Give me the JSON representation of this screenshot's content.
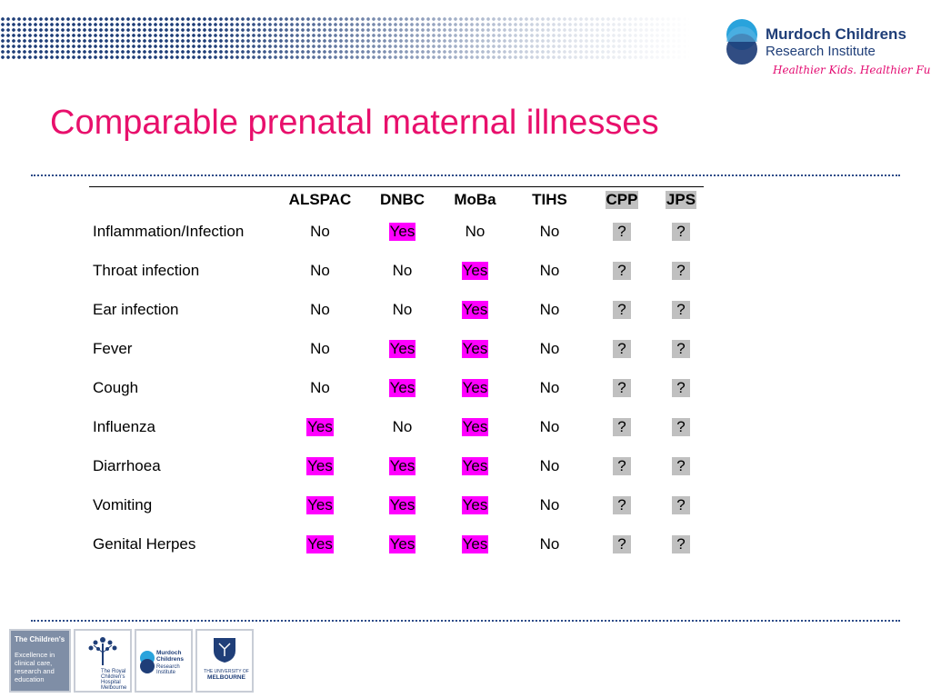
{
  "header": {
    "logo_name_line1": "Murdoch Childrens",
    "logo_name_line2": "Research Institute",
    "logo_tagline": "Healthier Kids. Healthier Future."
  },
  "title": "Comparable prenatal maternal illnesses",
  "table": {
    "columns": [
      "ALSPAC",
      "DNBC",
      "MoBa",
      "TIHS",
      "CPP",
      "JPS"
    ],
    "rows": [
      {
        "label": "Inflammation/Infection",
        "values": [
          "No",
          "Yes",
          "No",
          "No",
          "?",
          "?"
        ]
      },
      {
        "label": "Throat infection",
        "values": [
          "No",
          "No",
          "Yes",
          "No",
          "?",
          "?"
        ]
      },
      {
        "label": "Ear infection",
        "values": [
          "No",
          "No",
          "Yes",
          "No",
          "?",
          "?"
        ]
      },
      {
        "label": "Fever",
        "values": [
          "No",
          "Yes",
          "Yes",
          "No",
          "?",
          "?"
        ]
      },
      {
        "label": "Cough",
        "values": [
          "No",
          "Yes",
          "Yes",
          "No",
          "?",
          "?"
        ]
      },
      {
        "label": "Influenza",
        "values": [
          "Yes",
          "No",
          "Yes",
          "No",
          "?",
          "?"
        ]
      },
      {
        "label": "Diarrhoea",
        "values": [
          "Yes",
          "Yes",
          "Yes",
          "No",
          "?",
          "?"
        ]
      },
      {
        "label": "Vomiting",
        "values": [
          "Yes",
          "Yes",
          "Yes",
          "No",
          "?",
          "?"
        ]
      },
      {
        "label": "Genital Herpes",
        "values": [
          "Yes",
          "Yes",
          "Yes",
          "No",
          "?",
          "?"
        ]
      }
    ]
  },
  "footer": {
    "campus_title": "The Children's",
    "campus_text": "Excellence in clinical care, research and education",
    "rch_label": "The Royal Children's Hospital Melbourne",
    "mcri_label_1": "Murdoch",
    "mcri_label_2": "Childrens",
    "mcri_label_3": "Research Institute",
    "uom_label_1": "THE UNIVERSITY OF",
    "uom_label_2": "MELBOURNE"
  },
  "colors": {
    "title": "#e8106c",
    "highlight_yes": "#ff00ff",
    "highlight_unknown": "#c0c0c0",
    "brand_navy": "#1f3e78"
  }
}
